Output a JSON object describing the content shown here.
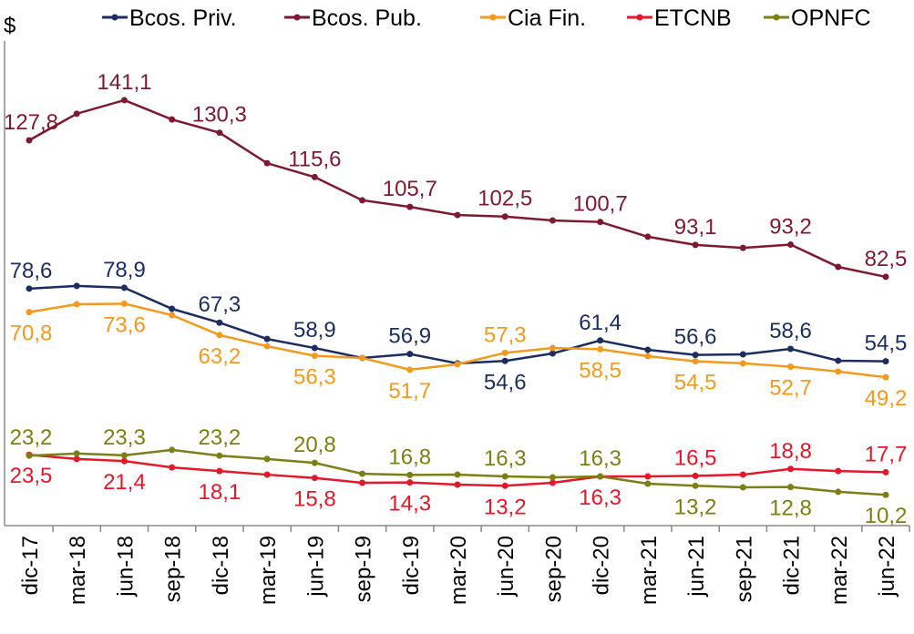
{
  "chart_data": {
    "type": "line",
    "title": "",
    "ylabel": "$",
    "xlabel": "",
    "ylim": [
      0,
      165
    ],
    "grid": false,
    "legend_position": "top",
    "categories": [
      "dic-17",
      "mar-18",
      "jun-18",
      "sep-18",
      "dic-18",
      "mar-19",
      "jun-19",
      "sep-19",
      "dic-19",
      "mar-20",
      "jun-20",
      "sep-20",
      "dic-20",
      "mar-21",
      "jun-21",
      "sep-21",
      "dic-21",
      "mar-22",
      "jun-22"
    ],
    "series": [
      {
        "name": "Bcos. Priv.",
        "color": "#1c2d5e",
        "values": [
          78.6,
          79.5,
          78.9,
          71.9,
          67.3,
          61.9,
          58.9,
          55.6,
          56.9,
          53.8,
          54.6,
          57.1,
          61.4,
          58.3,
          56.6,
          56.8,
          58.6,
          54.7,
          54.5
        ],
        "label_pos": [
          "above",
          "",
          "above",
          "",
          "above",
          "",
          "above",
          "",
          "above",
          "",
          "below",
          "",
          "above",
          "",
          "above",
          "",
          "above",
          "",
          "above"
        ]
      },
      {
        "name": "Bcos. Pub.",
        "color": "#7d1a30",
        "values": [
          127.8,
          136.6,
          141.1,
          134.7,
          130.3,
          120.2,
          115.6,
          107.9,
          105.7,
          103.0,
          102.5,
          101.2,
          100.7,
          95.8,
          93.1,
          92.1,
          93.2,
          85.8,
          82.5
        ],
        "label_pos": [
          "above",
          "",
          "above",
          "",
          "above",
          "",
          "above",
          "",
          "above",
          "",
          "above",
          "",
          "above",
          "",
          "above",
          "",
          "above",
          "",
          "above"
        ]
      },
      {
        "name": "Cia Fin.",
        "color": "#f39a1e",
        "values": [
          70.8,
          73.4,
          73.6,
          69.8,
          63.2,
          59.5,
          56.3,
          55.6,
          51.7,
          53.5,
          57.3,
          58.9,
          58.5,
          56.2,
          54.5,
          53.8,
          52.7,
          51.1,
          49.2
        ],
        "label_pos": [
          "below",
          "",
          "below",
          "",
          "below",
          "",
          "below",
          "",
          "below",
          "",
          "above",
          "",
          "below",
          "",
          "below",
          "",
          "below",
          "",
          "below"
        ]
      },
      {
        "name": "ETCNB",
        "color": "#e3192b",
        "values": [
          23.5,
          22.1,
          21.4,
          19.3,
          18.1,
          16.9,
          15.8,
          14.2,
          14.3,
          13.6,
          13.2,
          14.2,
          16.3,
          16.3,
          16.5,
          16.9,
          18.8,
          18.1,
          17.7
        ],
        "label_pos": [
          "below",
          "",
          "below",
          "",
          "below",
          "",
          "below",
          "",
          "below",
          "",
          "below",
          "",
          "below",
          "",
          "above",
          "",
          "above",
          "",
          "above"
        ]
      },
      {
        "name": "OPNFC",
        "color": "#7c7f14",
        "values": [
          23.2,
          23.9,
          23.3,
          25.1,
          23.2,
          22.1,
          20.8,
          17.2,
          16.8,
          16.9,
          16.3,
          16.0,
          16.3,
          13.9,
          13.2,
          12.7,
          12.8,
          11.2,
          10.2
        ],
        "label_pos": [
          "above",
          "",
          "above",
          "",
          "above",
          "",
          "above",
          "",
          "above",
          "",
          "above",
          "",
          "above",
          "",
          "below",
          "",
          "below",
          "",
          "below"
        ]
      }
    ]
  }
}
